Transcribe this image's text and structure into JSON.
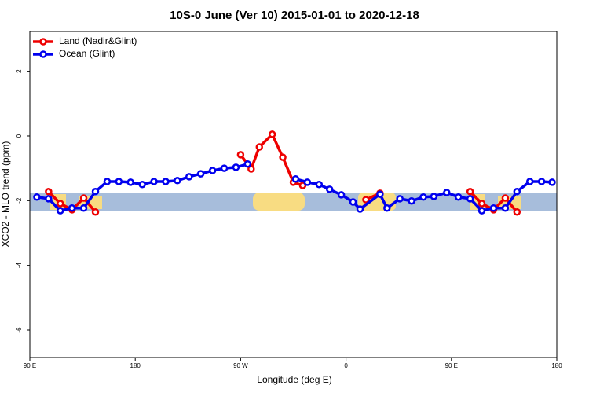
{
  "chart_data": {
    "type": "line",
    "title": "10S-0 June (Ver 10)   2015-01-01 to 2020-12-18",
    "x_label": "Longitude (deg E)",
    "y_label": "XCO2 - MLO trend (ppm)",
    "xlim": [
      90,
      540
    ],
    "xticks": [
      {
        "value": 90,
        "label": "90 E"
      },
      {
        "value": 180,
        "label": "180"
      },
      {
        "value": 270,
        "label": "90 W"
      },
      {
        "value": 360,
        "label": "0"
      },
      {
        "value": 450,
        "label": "90 E"
      },
      {
        "value": 540,
        "label": "180"
      }
    ],
    "ylim": [
      -6.85,
      3.23
    ],
    "yticks": [
      -6,
      -4,
      -2,
      0,
      2
    ],
    "legend": "top-left",
    "series": [
      {
        "name": "Land (Nadir&Glint)",
        "color": "#ee0000",
        "x": [
          106,
          116,
          126,
          136,
          146,
          null,
          270,
          279,
          286,
          297,
          306,
          315,
          323,
          null,
          377,
          389,
          null,
          466,
          476,
          486,
          496,
          506
        ],
        "values": [
          -1.72,
          -2.09,
          -2.28,
          -1.92,
          -2.35,
          null,
          -0.58,
          -1.02,
          -0.34,
          0.05,
          -0.66,
          -1.43,
          -1.53,
          null,
          -1.97,
          -1.77,
          null,
          -1.72,
          -2.09,
          -2.28,
          -1.92,
          -2.35
        ]
      },
      {
        "name": "Ocean (Glint)",
        "color": "#0000ee",
        "x": [
          96,
          106,
          116,
          126,
          136,
          146,
          156,
          166,
          176,
          186,
          196,
          206,
          216,
          226,
          236,
          246,
          256,
          266,
          276,
          null,
          317,
          327,
          337,
          346,
          356,
          366,
          372,
          389,
          395,
          406,
          416,
          426,
          435,
          446,
          456,
          466,
          476,
          486,
          496,
          506,
          517,
          527,
          536
        ],
        "values": [
          -1.89,
          -1.94,
          -2.31,
          -2.23,
          -2.23,
          -1.72,
          -1.41,
          -1.41,
          -1.43,
          -1.5,
          -1.41,
          -1.41,
          -1.38,
          -1.26,
          -1.17,
          -1.07,
          -1.0,
          -0.97,
          -0.87,
          null,
          -1.33,
          -1.43,
          -1.5,
          -1.65,
          -1.82,
          -2.04,
          -2.26,
          -1.8,
          -2.23,
          -1.94,
          -2.01,
          -1.89,
          -1.87,
          -1.75,
          -1.89,
          -1.94,
          -2.31,
          -2.23,
          -2.23,
          -1.72,
          -1.41,
          -1.41,
          -1.43
        ]
      }
    ]
  }
}
